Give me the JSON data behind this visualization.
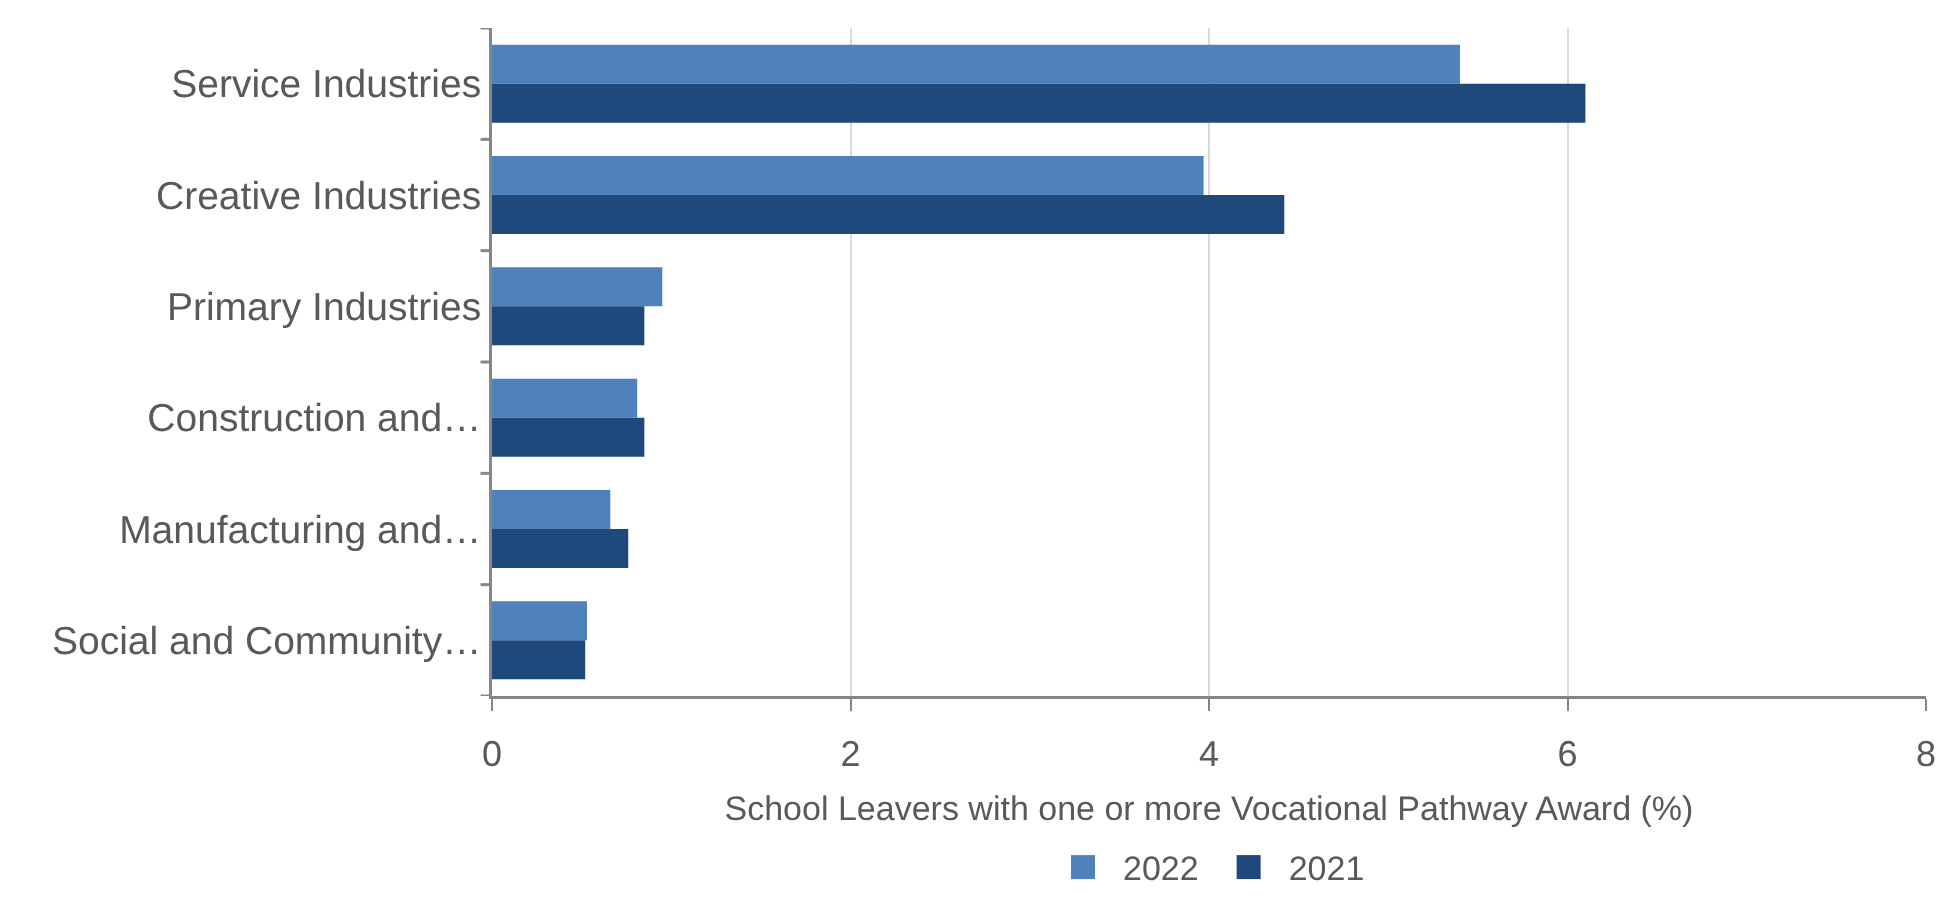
{
  "chart_data": {
    "type": "bar",
    "orientation": "horizontal",
    "categories": [
      "Service Industries",
      "Creative Industries",
      "Primary Industries",
      "Construction and…",
      "Manufacturing and…",
      "Social and Community…"
    ],
    "series": [
      {
        "name": "2022",
        "color": "#4f81bd",
        "values": [
          5.4,
          3.97,
          0.95,
          0.81,
          0.66,
          0.53
        ]
      },
      {
        "name": "2021",
        "color": "#1f497d",
        "values": [
          6.1,
          4.42,
          0.85,
          0.85,
          0.76,
          0.52
        ]
      }
    ],
    "xlabel": "School Leavers with one or more Vocational Pathway Award (%)",
    "xlim": [
      0,
      8
    ],
    "xticks": [
      0,
      2,
      4,
      6,
      8
    ],
    "grid": "x",
    "legend": "bottom"
  }
}
